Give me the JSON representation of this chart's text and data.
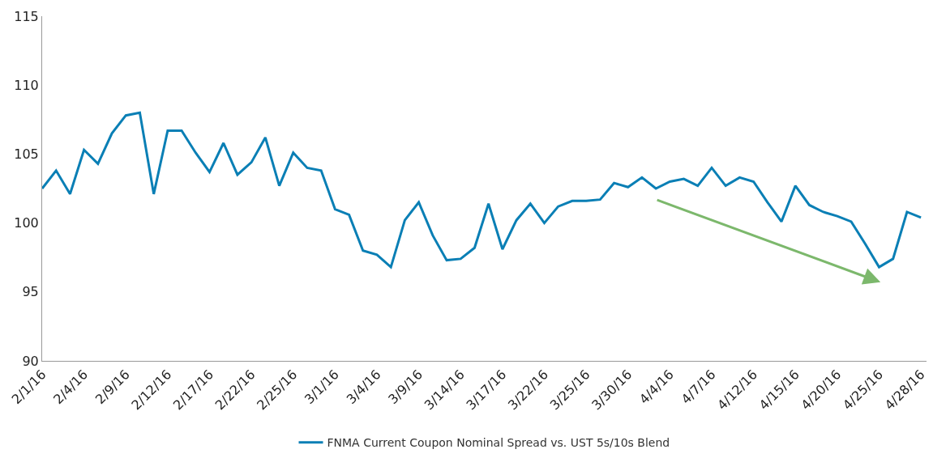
{
  "chart_data": {
    "type": "line",
    "categories": [
      "2/1/16",
      null,
      null,
      "2/4/16",
      null,
      null,
      "2/9/16",
      null,
      null,
      "2/12/16",
      null,
      null,
      "2/17/16",
      null,
      null,
      "2/22/16",
      null,
      null,
      "2/25/16",
      null,
      null,
      "3/1/16",
      null,
      null,
      "3/4/16",
      null,
      null,
      "3/9/16",
      null,
      null,
      "3/14/16",
      null,
      null,
      "3/17/16",
      null,
      null,
      "3/22/16",
      null,
      null,
      "3/25/16",
      null,
      null,
      "3/30/16",
      null,
      null,
      "4/4/16",
      null,
      null,
      "4/7/16",
      null,
      null,
      "4/12/16",
      null,
      null,
      "4/15/16",
      null,
      null,
      "4/20/16",
      null,
      null,
      "4/25/16",
      null,
      null,
      "4/28/16"
    ],
    "series": [
      {
        "name": "FNMA Current Coupon Nominal Spread vs. UST 5s/10s Blend",
        "color": "#0a7fb5",
        "values": [
          102.5,
          103.8,
          102.1,
          105.3,
          104.3,
          106.5,
          107.8,
          108.0,
          102.1,
          106.7,
          106.7,
          105.1,
          103.7,
          105.8,
          103.5,
          104.4,
          106.2,
          102.7,
          105.1,
          104.0,
          103.8,
          101.0,
          100.6,
          98.0,
          97.7,
          96.8,
          100.2,
          101.5,
          99.1,
          97.3,
          97.4,
          98.2,
          101.4,
          98.1,
          100.2,
          101.4,
          100.0,
          101.2,
          101.6,
          101.6,
          101.7,
          102.9,
          102.6,
          103.3,
          102.5,
          103.0,
          103.2,
          102.7,
          104.0,
          102.7,
          103.3,
          103.0,
          101.5,
          100.1,
          102.7,
          101.3,
          100.8,
          100.5,
          100.1,
          98.5,
          96.8,
          97.4,
          100.8,
          100.4
        ]
      }
    ],
    "ylim": [
      90,
      115
    ],
    "yticks": [
      90,
      95,
      100,
      105,
      110,
      115
    ],
    "grid": false,
    "legend": "bottom",
    "marker": "none",
    "line_style": "solid"
  }
}
